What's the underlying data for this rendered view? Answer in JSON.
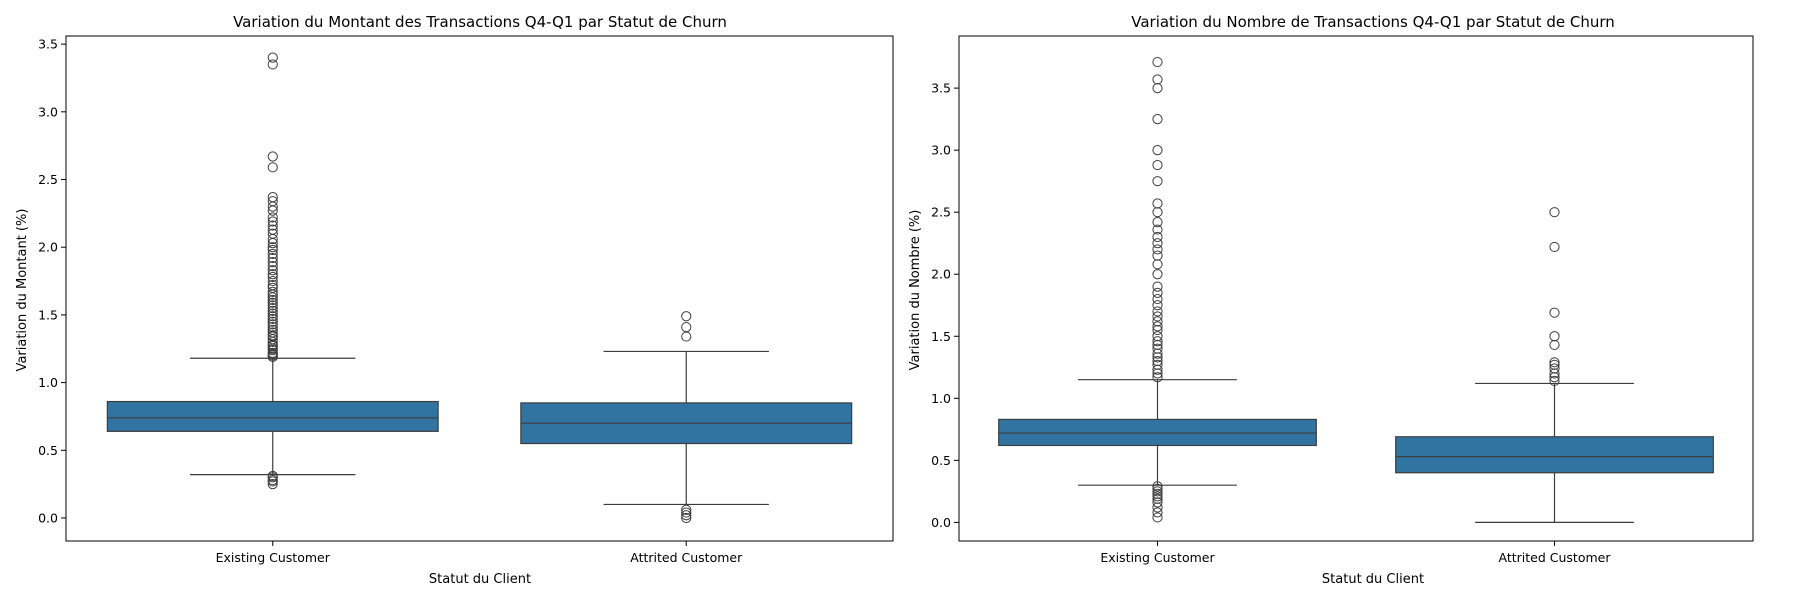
{
  "chart_data": [
    {
      "type": "box",
      "title": "Variation du Montant des Transactions Q4-Q1 par Statut de Churn",
      "xlabel": "Statut du Client",
      "ylabel": "Variation du Montant (%)",
      "ylim": [
        -0.17,
        3.56
      ],
      "yticks": [
        "0.0",
        "0.5",
        "1.0",
        "1.5",
        "2.0",
        "2.5",
        "3.0",
        "3.5"
      ],
      "categories": [
        "Existing Customer",
        "Attrited Customer"
      ],
      "color": "#3274a1",
      "boxes": [
        {
          "category": "Existing Customer",
          "whisker_low": 0.32,
          "q1": 0.64,
          "median": 0.74,
          "q3": 0.86,
          "whisker_high": 1.18,
          "outliers": [
            0.25,
            0.27,
            0.28,
            0.3,
            0.31,
            1.19,
            1.2,
            1.21,
            1.22,
            1.24,
            1.25,
            1.27,
            1.28,
            1.3,
            1.32,
            1.34,
            1.35,
            1.37,
            1.39,
            1.41,
            1.43,
            1.45,
            1.47,
            1.49,
            1.51,
            1.53,
            1.55,
            1.57,
            1.59,
            1.61,
            1.63,
            1.65,
            1.67,
            1.7,
            1.72,
            1.75,
            1.78,
            1.8,
            1.83,
            1.86,
            1.89,
            1.92,
            1.95,
            1.98,
            2.0,
            2.03,
            2.06,
            2.1,
            2.13,
            2.16,
            2.19,
            2.22,
            2.27,
            2.3,
            2.34,
            2.37,
            2.59,
            2.67,
            3.35,
            3.4
          ]
        },
        {
          "category": "Attrited Customer",
          "whisker_low": 0.1,
          "q1": 0.55,
          "median": 0.7,
          "q3": 0.85,
          "whisker_high": 1.23,
          "outliers": [
            0.0,
            0.02,
            0.04,
            0.06,
            1.34,
            1.41,
            1.49
          ]
        }
      ]
    },
    {
      "type": "box",
      "title": "Variation du Nombre de Transactions Q4-Q1 par Statut de Churn",
      "xlabel": "Statut du Client",
      "ylabel": "Variation du Nombre (%)",
      "ylim": [
        -0.15,
        3.92
      ],
      "yticks": [
        "0.0",
        "0.5",
        "1.0",
        "1.5",
        "2.0",
        "2.5",
        "3.0",
        "3.5"
      ],
      "categories": [
        "Existing Customer",
        "Attrited Customer"
      ],
      "color": "#3274a1",
      "boxes": [
        {
          "category": "Existing Customer",
          "whisker_low": 0.3,
          "q1": 0.62,
          "median": 0.72,
          "q3": 0.83,
          "whisker_high": 1.15,
          "outliers": [
            0.04,
            0.08,
            0.12,
            0.16,
            0.19,
            0.21,
            0.23,
            0.25,
            0.27,
            0.29,
            1.17,
            1.2,
            1.23,
            1.27,
            1.3,
            1.33,
            1.36,
            1.4,
            1.43,
            1.46,
            1.5,
            1.55,
            1.58,
            1.62,
            1.66,
            1.7,
            1.75,
            1.8,
            1.85,
            1.9,
            2.0,
            2.08,
            2.15,
            2.2,
            2.25,
            2.3,
            2.36,
            2.42,
            2.5,
            2.57,
            2.75,
            2.88,
            3.0,
            3.25,
            3.5,
            3.57,
            3.71
          ]
        },
        {
          "category": "Attrited Customer",
          "whisker_low": 0.0,
          "q1": 0.4,
          "median": 0.53,
          "q3": 0.69,
          "whisker_high": 1.12,
          "outliers": [
            1.14,
            1.17,
            1.2,
            1.24,
            1.27,
            1.29,
            1.43,
            1.5,
            1.69,
            2.22,
            2.5
          ]
        }
      ]
    }
  ]
}
